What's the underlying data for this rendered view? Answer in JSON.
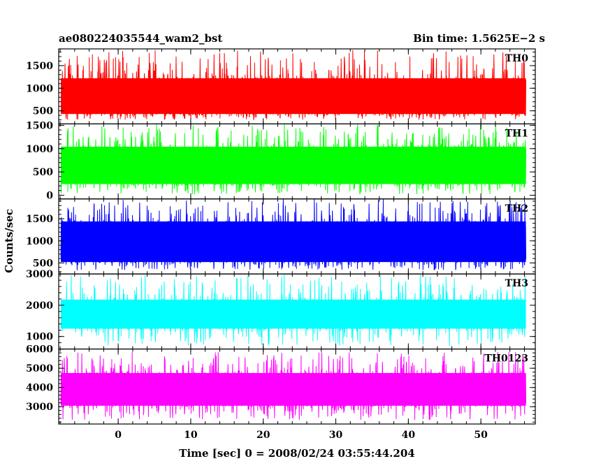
{
  "chart_data": {
    "type": "line",
    "title": "ae080224035544_wam2_bst",
    "subtitle": "Bin time: 1.5625E−2 s",
    "xlabel": "Time [sec] 0 = 2008/02/24 03:55:44.204",
    "ylabel": "Counts/sec",
    "xlim": [
      -8.2,
      57.5
    ],
    "x_ticks": [
      0,
      10,
      20,
      30,
      40,
      50
    ],
    "x_tick_labels": [
      "0",
      "10",
      "20",
      "30",
      "40",
      "50"
    ],
    "data_x_range": [
      -7.9,
      56.2
    ],
    "bin_time_s": 0.015625,
    "grid": false,
    "panels": [
      {
        "name": "TH0",
        "color": "#ff0000",
        "ylim": [
          210,
          1870
        ],
        "y_ticks": [
          500,
          1000,
          1500
        ],
        "y_tick_labels": [
          "500",
          "1000",
          "1500"
        ],
        "band_low": 430,
        "band_high": 1220,
        "spike_low": 300,
        "spike_high": 1850
      },
      {
        "name": "TH1",
        "color": "#00ff00",
        "ylim": [
          -80,
          1530
        ],
        "y_ticks": [
          0,
          500,
          1000,
          1500
        ],
        "y_tick_labels": [
          "0",
          "500",
          "1000",
          "1500"
        ],
        "band_low": 240,
        "band_high": 1040,
        "spike_low": 20,
        "spike_high": 1530
      },
      {
        "name": "TH2",
        "color": "#0000ff",
        "ylim": [
          250,
          1950
        ],
        "y_ticks": [
          500,
          1000,
          1500
        ],
        "y_tick_labels": [
          "500",
          "1000",
          "1500"
        ],
        "band_low": 520,
        "band_high": 1440,
        "spike_low": 330,
        "spike_high": 1950
      },
      {
        "name": "TH3",
        "color": "#00ffff",
        "ylim": [
          600,
          3000
        ],
        "y_ticks": [
          1000,
          2000,
          3000
        ],
        "y_tick_labels": [
          "1000",
          "2000",
          "3000"
        ],
        "band_low": 1250,
        "band_high": 2180,
        "spike_low": 700,
        "spike_high": 3000
      },
      {
        "name": "TH0123",
        "color": "#ff00ff",
        "ylim": [
          2100,
          6000
        ],
        "y_ticks": [
          3000,
          4000,
          5000,
          6000
        ],
        "y_tick_labels": [
          "3000",
          "4000",
          "5000",
          "6000"
        ],
        "band_low": 3050,
        "band_high": 4750,
        "spike_low": 2300,
        "spike_high": 5850
      }
    ]
  }
}
